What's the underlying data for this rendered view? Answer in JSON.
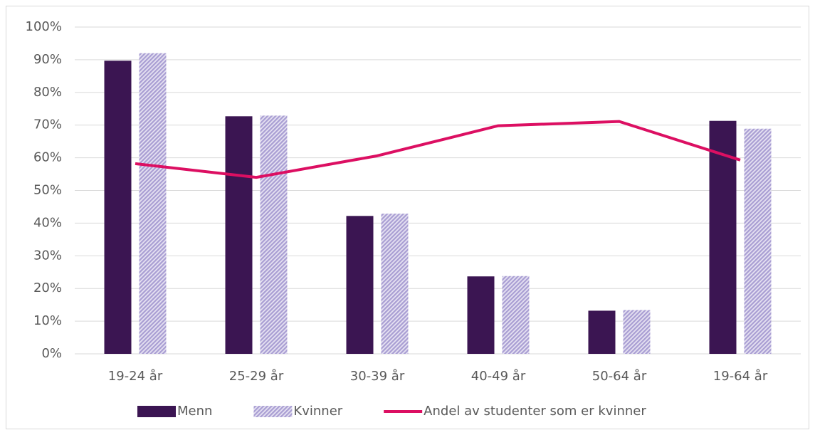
{
  "chart_data": {
    "type": "bar-line",
    "categories": [
      "19-24 år",
      "25-29 år",
      "30-39 år",
      "40-49 år",
      "50-64 år",
      "19-64 år"
    ],
    "series": [
      {
        "name": "Menn",
        "type": "bar",
        "color": "#3b1552",
        "values": [
          89.7,
          72.7,
          42.2,
          23.7,
          13.2,
          71.3
        ]
      },
      {
        "name": "Kvinner",
        "type": "bar",
        "color": "#a99ed3",
        "hatch": true,
        "values": [
          92.0,
          72.9,
          42.9,
          23.8,
          13.4,
          68.9
        ]
      },
      {
        "name": "Andel av studenter som er kvinner",
        "type": "line",
        "color": "#dc0f62",
        "values": [
          58.2,
          54.0,
          60.6,
          69.8,
          71.1,
          59.3
        ]
      }
    ],
    "ylim": [
      0,
      100
    ],
    "yticks": [
      {
        "value": 0,
        "label": "0%"
      },
      {
        "value": 10,
        "label": "10%"
      },
      {
        "value": 20,
        "label": "20%"
      },
      {
        "value": 30,
        "label": "30%"
      },
      {
        "value": 40,
        "label": "40%"
      },
      {
        "value": 50,
        "label": "50%"
      },
      {
        "value": 60,
        "label": "60%"
      },
      {
        "value": 70,
        "label": "70%"
      },
      {
        "value": 80,
        "label": "80%"
      },
      {
        "value": 90,
        "label": "90%"
      },
      {
        "value": 100,
        "label": "100%"
      }
    ],
    "grid": true,
    "legend": "bottom"
  }
}
